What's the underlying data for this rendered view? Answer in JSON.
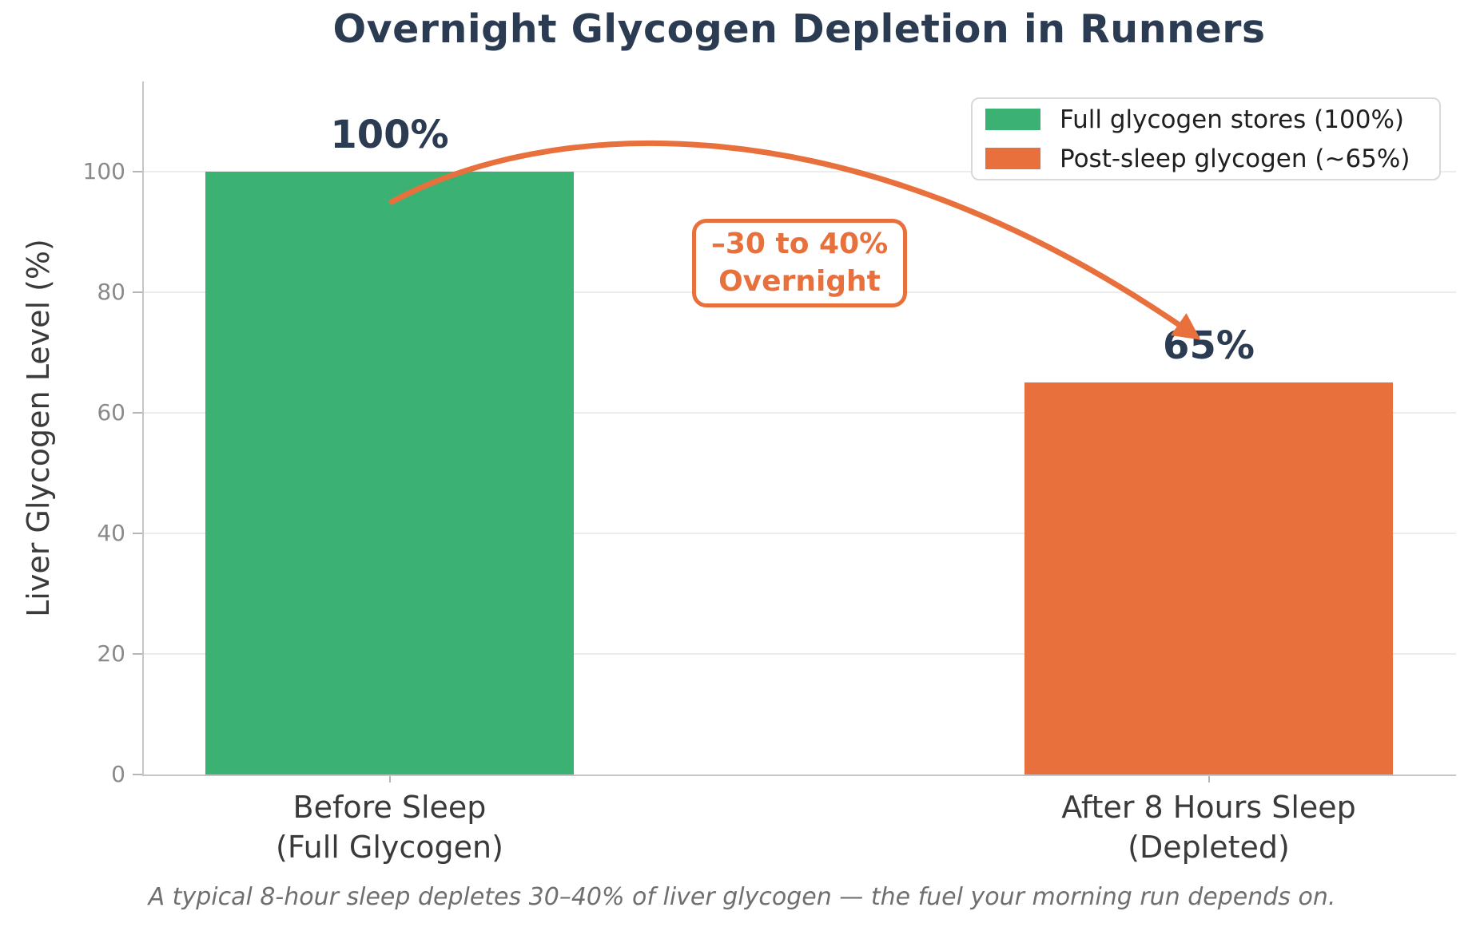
{
  "chart_data": {
    "type": "bar",
    "title": "Overnight Glycogen Depletion in Runners",
    "ylabel": "Liver Glycogen Level (%)",
    "xlabel": "",
    "ylim": [
      0,
      115
    ],
    "yticks": [
      0,
      20,
      40,
      60,
      80,
      100
    ],
    "grid": "horizontal light-gray gridlines, left and bottom spines only",
    "categories": [
      {
        "line1": "Before Sleep",
        "line2": "(Full Glycogen)"
      },
      {
        "line1": "After 8 Hours Sleep",
        "line2": "(Depleted)"
      }
    ],
    "series": [
      {
        "name": "Liver glycogen level",
        "values": [
          100,
          65
        ]
      }
    ],
    "bar_value_labels": [
      "100%",
      "65%"
    ],
    "bar_colors": [
      "#3bb273",
      "#e8703c"
    ],
    "legend": {
      "position": "upper right",
      "entries": [
        {
          "label": "Full glycogen stores (100%)",
          "color": "#3bb273"
        },
        {
          "label": "Post-sleep glycogen (~65%)",
          "color": "#e8703c"
        }
      ]
    },
    "annotation": {
      "line1": "–30 to 40%",
      "line2": "Overnight",
      "color": "#e8703c",
      "style": "rounded white box with orange border, between the bars"
    },
    "arrow": {
      "description": "orange curved arrow from top of the Before Sleep bar arcing over to the 65% label of the After Sleep bar",
      "color": "#e8703c"
    },
    "caption": "A typical 8-hour sleep depletes 30–40% of liver glycogen — the fuel your morning run depends on."
  },
  "colors": {
    "title_text": "#2a3b52",
    "value_label_text": "#2a3b52",
    "green": "#3bb273",
    "orange": "#e8703c",
    "gridline": "#ececec",
    "spine": "#c5c5c5",
    "tick_label": "#8a8a8a",
    "axis_label": "#3a3a3a",
    "legend_border": "#d9d9d9",
    "legend_text": "#1f1f1f",
    "caption_text": "#6f6f6f",
    "background": "#ffffff"
  }
}
